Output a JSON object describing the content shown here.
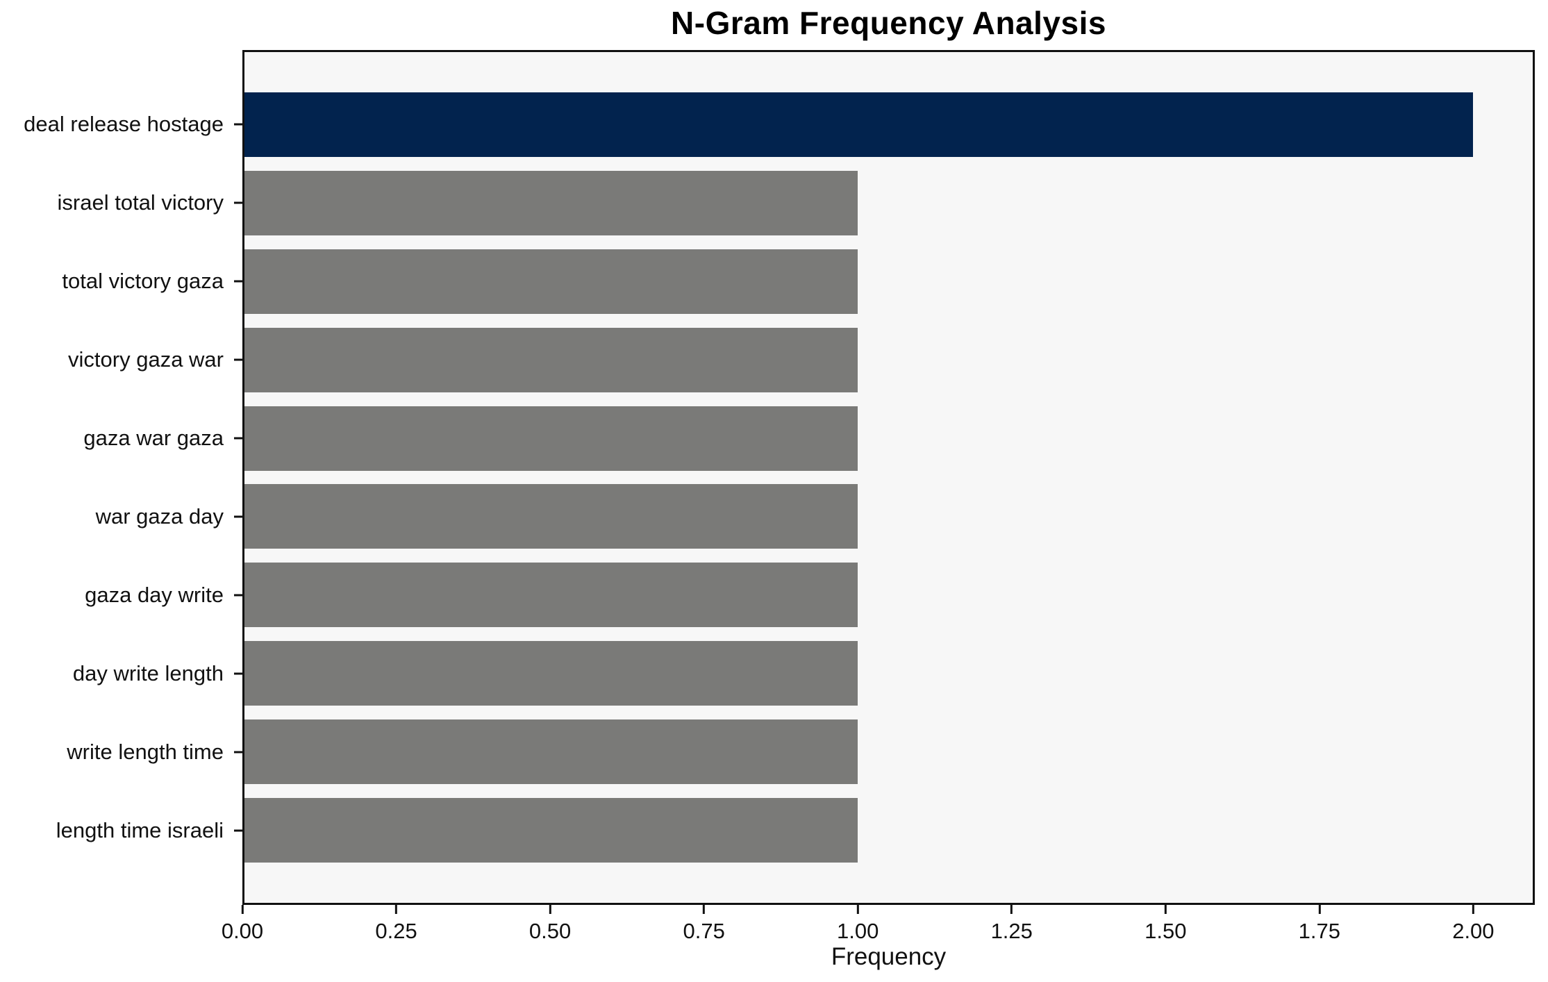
{
  "chart_data": {
    "type": "bar",
    "orientation": "horizontal",
    "title": "N-Gram Frequency Analysis",
    "xlabel": "Frequency",
    "ylabel": "",
    "categories": [
      "deal release hostage",
      "israel total victory",
      "total victory gaza",
      "victory gaza war",
      "gaza war gaza",
      "war gaza day",
      "gaza day write",
      "day write length",
      "write length time",
      "length time israeli"
    ],
    "values": [
      2.0,
      1.0,
      1.0,
      1.0,
      1.0,
      1.0,
      1.0,
      1.0,
      1.0,
      1.0
    ],
    "bar_colors": [
      "#02234e",
      "#7a7a78",
      "#7a7a78",
      "#7a7a78",
      "#7a7a78",
      "#7a7a78",
      "#7a7a78",
      "#7a7a78",
      "#7a7a78",
      "#7a7a78"
    ],
    "x_ticks": [
      "0.00",
      "0.25",
      "0.50",
      "0.75",
      "1.00",
      "1.25",
      "1.50",
      "1.75",
      "2.00"
    ],
    "x_tick_values": [
      0.0,
      0.25,
      0.5,
      0.75,
      1.0,
      1.25,
      1.5,
      1.75,
      2.0
    ],
    "xlim": [
      0,
      2.1
    ],
    "grid": false,
    "legend": null,
    "plot_background": "#f7f7f7",
    "figure_background": "#ffffff",
    "highlight_color": "#02234e",
    "default_bar_color": "#7a7a78"
  }
}
